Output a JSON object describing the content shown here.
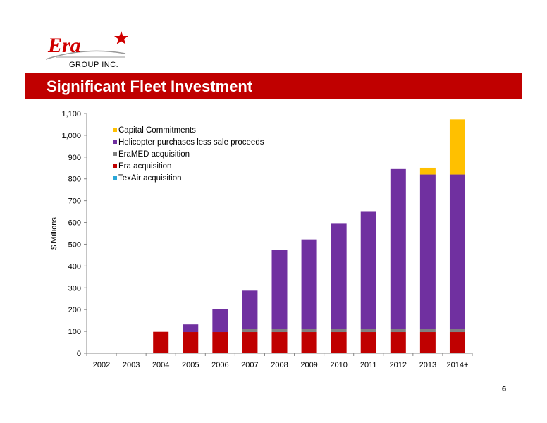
{
  "header": {
    "logo_text": "Era",
    "logo_subtext": "GROUP INC.",
    "title": "Significant Fleet Investment"
  },
  "page_number": "6",
  "colors": {
    "title_bar": "#c00000",
    "logo_red": "#d00000",
    "axis": "#888888"
  },
  "chart_data": {
    "type": "bar",
    "stacked": true,
    "title": "",
    "xlabel": "",
    "ylabel": "$ Millions",
    "ylim": [
      0,
      1100
    ],
    "yticks": [
      0,
      100,
      200,
      300,
      400,
      500,
      600,
      700,
      800,
      900,
      1000,
      1100
    ],
    "ytick_labels": [
      "0",
      "100",
      "200",
      "300",
      "400",
      "500",
      "600",
      "700",
      "800",
      "900",
      "1,000",
      "1,100"
    ],
    "categories": [
      "2002",
      "2003",
      "2004",
      "2005",
      "2006",
      "2007",
      "2008",
      "2009",
      "2010",
      "2011",
      "2012",
      "2013",
      "2014+"
    ],
    "legend_position": "top-left",
    "series": [
      {
        "name": "TexAir acquisition",
        "color": "#2aa7d8",
        "values": [
          0,
          3,
          0,
          0,
          0,
          0,
          0,
          0,
          0,
          0,
          0,
          0,
          0
        ]
      },
      {
        "name": "Era acquisition",
        "color": "#c00000",
        "values": [
          0,
          0,
          98,
          97,
          97,
          97,
          97,
          97,
          97,
          97,
          97,
          97,
          97
        ]
      },
      {
        "name": "EraMED acquisition",
        "color": "#808080",
        "values": [
          0,
          0,
          0,
          0,
          0,
          15,
          15,
          15,
          15,
          15,
          15,
          15,
          15
        ]
      },
      {
        "name": "Helicopter purchases less sale proceeds",
        "color": "#7030a0",
        "values": [
          0,
          0,
          0,
          35,
          105,
          175,
          362,
          410,
          482,
          540,
          733,
          708,
          708
        ]
      },
      {
        "name": "Capital Commitments",
        "color": "#ffc000",
        "values": [
          0,
          0,
          0,
          0,
          0,
          0,
          0,
          0,
          0,
          0,
          0,
          31,
          253
        ]
      }
    ],
    "legend_order": [
      "Capital Commitments",
      "Helicopter purchases less sale proceeds",
      "EraMED acquisition",
      "Era acquisition",
      "TexAir acquisition"
    ]
  }
}
